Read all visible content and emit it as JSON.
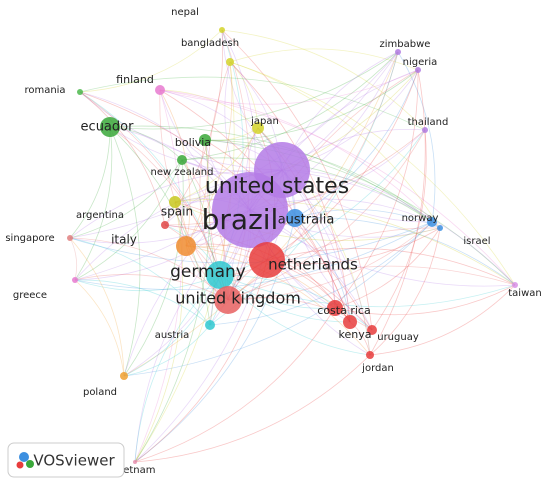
{
  "nodes": [
    {
      "label": "nepal",
      "color": "#d4d42a"
    },
    {
      "label": "bangladesh",
      "color": "#d4d42a"
    },
    {
      "label": "zimbabwe",
      "color": "#b07be0"
    },
    {
      "label": "nigeria",
      "color": "#b07be0"
    },
    {
      "label": "romania",
      "color": "#4cb84c"
    },
    {
      "label": "finland",
      "color": "#e87ad0"
    },
    {
      "label": "ecuador",
      "color": "#3aa83a"
    },
    {
      "label": "japan",
      "color": "#d4d42a"
    },
    {
      "label": "thailand",
      "color": "#b07be0"
    },
    {
      "label": "bolivia",
      "color": "#3aa83a"
    },
    {
      "label": "new zealand",
      "color": "#3aa83a"
    },
    {
      "label": "united states",
      "color": "#b47be6"
    },
    {
      "label": "brazil",
      "color": "#b47be6"
    },
    {
      "label": "australia",
      "color": "#3c8fe0"
    },
    {
      "label": "norway",
      "color": "#3c8fe0"
    },
    {
      "label": "israel",
      "color": "#3c8fe0"
    },
    {
      "label": "argentina",
      "color": "#e04848"
    },
    {
      "label": "spain",
      "color": "#c8c820"
    },
    {
      "label": "singapore",
      "color": "#e08080"
    },
    {
      "label": "italy",
      "color": "#f08c30"
    },
    {
      "label": "germany",
      "color": "#30c8d0"
    },
    {
      "label": "netherlands",
      "color": "#e83c3c"
    },
    {
      "label": "greece",
      "color": "#e87ad0"
    },
    {
      "label": "taiwan",
      "color": "#d890e8"
    },
    {
      "label": "united kingdom",
      "color": "#e86060"
    },
    {
      "label": "costa rica",
      "color": "#e83c3c"
    },
    {
      "label": "austria",
      "color": "#30c8d0"
    },
    {
      "label": "kenya",
      "color": "#e83c3c"
    },
    {
      "label": "uruguay",
      "color": "#e83c3c"
    },
    {
      "label": "jordan",
      "color": "#e83c3c"
    },
    {
      "label": "poland",
      "color": "#f0a030"
    },
    {
      "label": "vietnam",
      "color": "#e890b0"
    }
  ],
  "logo": {
    "text": "VOSviewer"
  }
}
